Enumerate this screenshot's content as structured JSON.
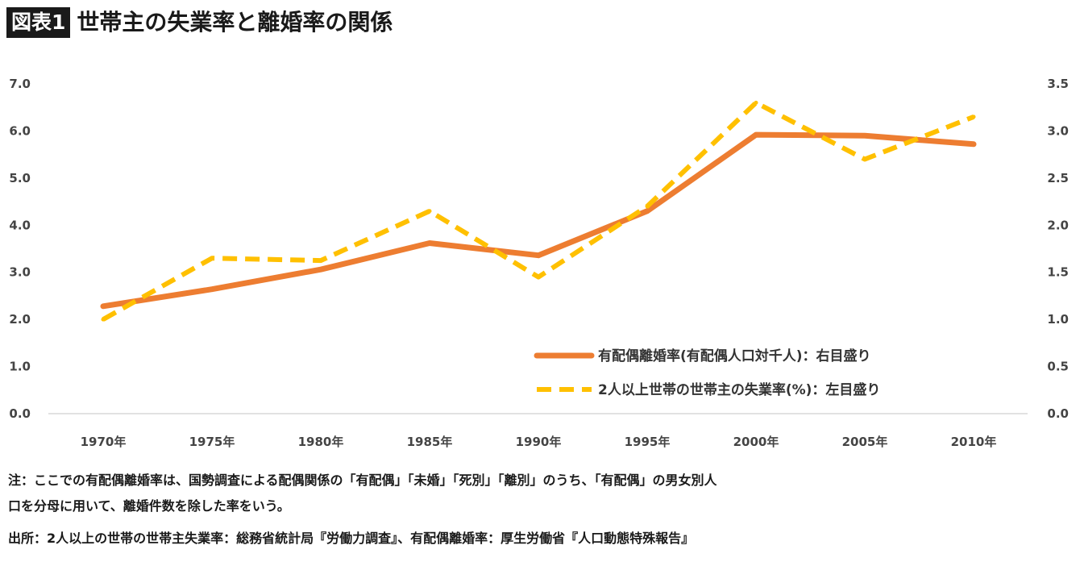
{
  "header": {
    "badge": "図表1",
    "title": "世帯主の失業率と離婚率の関係"
  },
  "chart_data": {
    "type": "line",
    "categories": [
      "1970年",
      "1975年",
      "1980年",
      "1985年",
      "1990年",
      "1995年",
      "2000年",
      "2005年",
      "2010年"
    ],
    "series": [
      {
        "name": "有配偶離婚率(有配偶人口対千人)：右目盛り",
        "axis": "right",
        "style": "solid",
        "color": "#ED7D31",
        "values": [
          1.14,
          1.32,
          1.53,
          1.81,
          1.68,
          2.15,
          2.96,
          2.95,
          2.86
        ]
      },
      {
        "name": "2人以上世帯の世帯主の失業率(%)：左目盛り",
        "axis": "left",
        "style": "dashed",
        "color": "#FFC000",
        "values": [
          2.0,
          3.3,
          3.25,
          4.3,
          2.9,
          4.4,
          6.6,
          5.4,
          6.3
        ]
      }
    ],
    "y_left": {
      "min": 0,
      "max": 7,
      "ticks": [
        "0.0",
        "1.0",
        "2.0",
        "3.0",
        "4.0",
        "5.0",
        "6.0",
        "7.0"
      ]
    },
    "y_right": {
      "min": 0,
      "max": 3.5,
      "ticks": [
        "0.0",
        "0.5",
        "1.0",
        "1.5",
        "2.0",
        "2.5",
        "3.0",
        "3.5"
      ]
    },
    "grid": false,
    "legend_position": "bottom-right"
  },
  "notes": {
    "line1": "注：ここでの有配偶離婚率は、国勢調査による配偶関係の「有配偶」「未婚」「死別」「離別」のうち、「有配偶」の男女別人",
    "line2": "口を分母に用いて、離婚件数を除した率をいう。",
    "source": "出所：2人以上の世帯の世帯主失業率：総務省統計局『労働力調査』、有配偶離婚率：厚生労働省『人口動態特殊報告』"
  }
}
